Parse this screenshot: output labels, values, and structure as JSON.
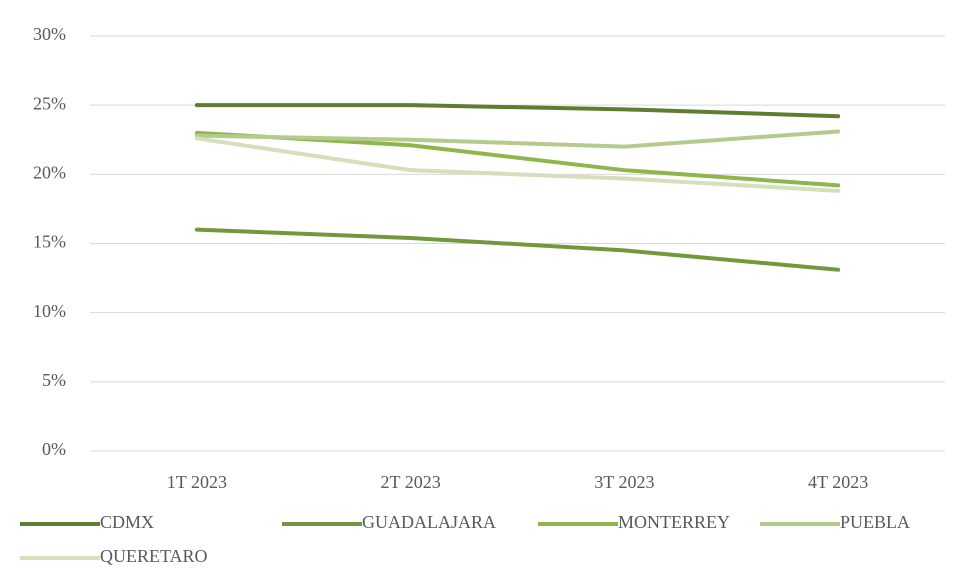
{
  "chart_data": {
    "type": "line",
    "categories": [
      "1T 2023",
      "2T 2023",
      "3T 2023",
      "4T 2023"
    ],
    "series": [
      {
        "name": "CDMX",
        "color": "#5e7d32",
        "values": [
          25,
          25,
          24.7,
          24.2
        ]
      },
      {
        "name": "GUADALAJARA",
        "color": "#71993b",
        "values": [
          16,
          15.4,
          14.5,
          13.1
        ]
      },
      {
        "name": "MONTERREY",
        "color": "#8fb64c",
        "values": [
          23,
          22.1,
          20.3,
          19.2
        ]
      },
      {
        "name": "PUEBLA",
        "color": "#b3cb8b",
        "values": [
          22.8,
          22.5,
          22,
          23.1
        ]
      },
      {
        "name": "QUERETARO",
        "color": "#d3e0b9",
        "values": [
          22.6,
          20.3,
          19.7,
          18.8
        ]
      }
    ],
    "ylim": [
      0,
      30
    ],
    "yticks": [
      {
        "value": 0,
        "label": "0%"
      },
      {
        "value": 5,
        "label": "5%"
      },
      {
        "value": 10,
        "label": "10%"
      },
      {
        "value": 15,
        "label": "15%"
      },
      {
        "value": 20,
        "label": "20%"
      },
      {
        "value": 25,
        "label": "25%"
      },
      {
        "value": 30,
        "label": "30%"
      }
    ],
    "grid": true
  }
}
